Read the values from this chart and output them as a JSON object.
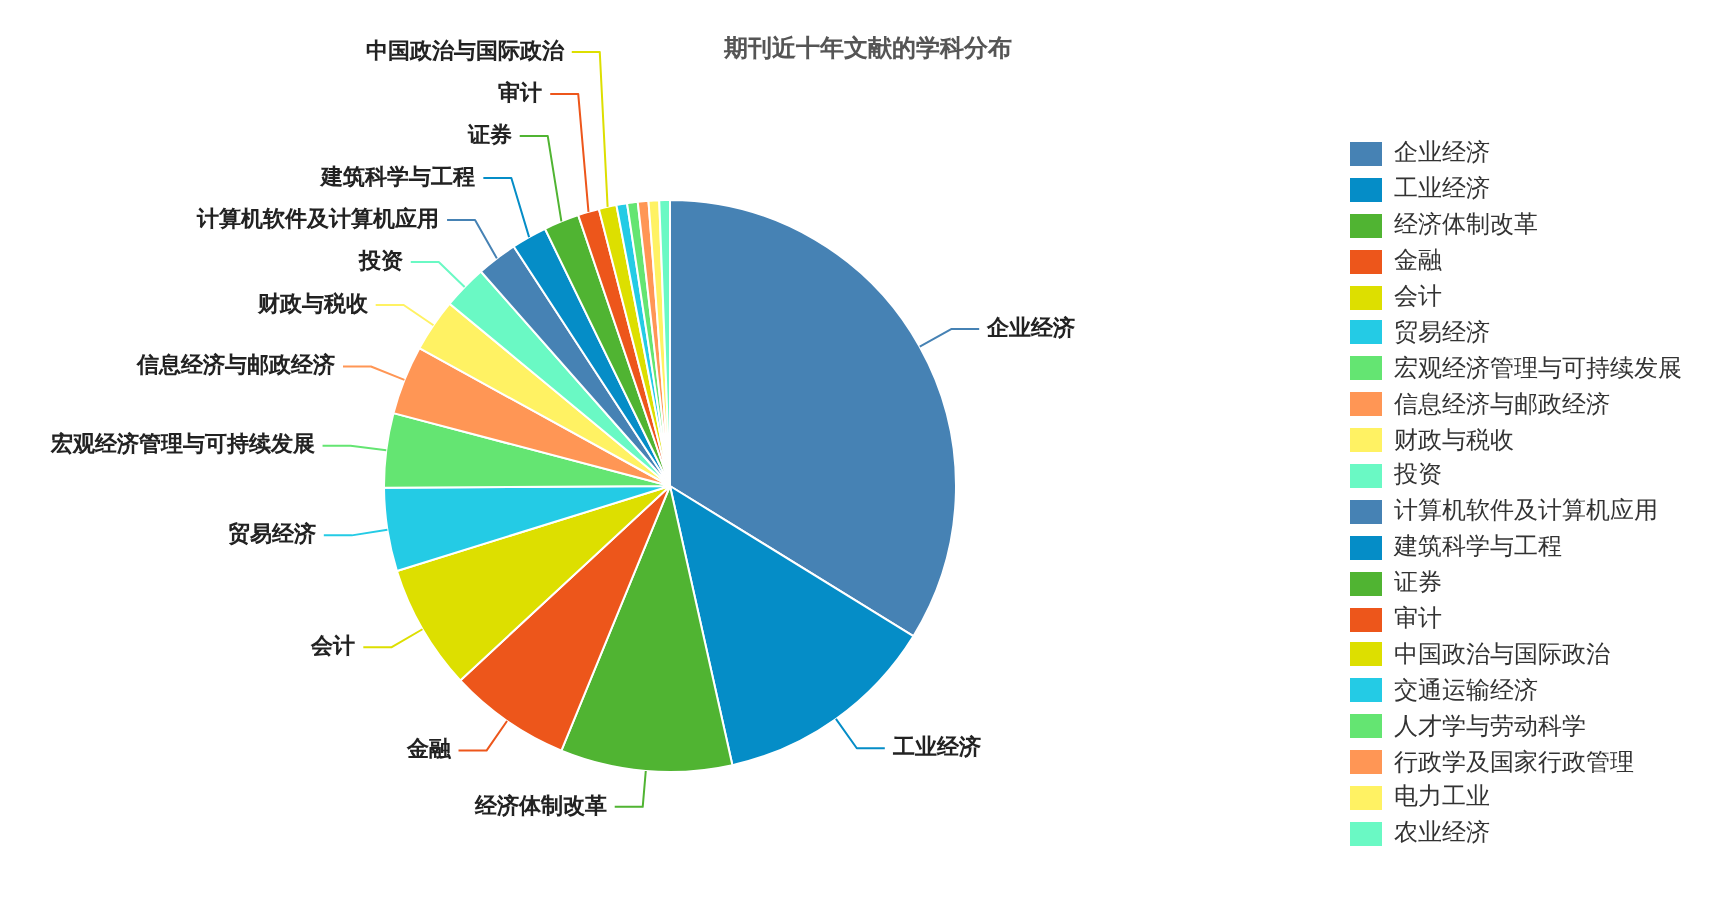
{
  "chart_data": {
    "type": "pie",
    "title": "期刊近十年文献的学科分布",
    "categories": [
      "企业经济",
      "工业经济",
      "经济体制改革",
      "金融",
      "会计",
      "贸易经济",
      "宏观经济管理与可持续发展",
      "信息经济与邮政经济",
      "财政与税收",
      "投资",
      "计算机软件及计算机应用",
      "建筑科学与工程",
      "证券",
      "审计",
      "中国政治与国际政治",
      "交通运输经济",
      "人才学与劳动科学",
      "行政学及国家行政管理",
      "电力工业",
      "农业经济"
    ],
    "values": [
      33.8,
      12.7,
      9.7,
      6.9,
      7.1,
      4.7,
      4.2,
      3.9,
      3.0,
      2.5,
      2.3,
      2.0,
      2.0,
      1.2,
      1.0,
      0.6,
      0.6,
      0.6,
      0.6,
      0.6
    ],
    "colors": [
      "#4682b4",
      "#058dc7",
      "#50b432",
      "#ed561b",
      "#dddf00",
      "#24cbe5",
      "#64e572",
      "#ff9655",
      "#fff263",
      "#6af9c4",
      "#4682b4",
      "#058dc7",
      "#50b432",
      "#ed561b",
      "#dddf00",
      "#24cbe5",
      "#64e572",
      "#ff9655",
      "#fff263",
      "#6af9c4"
    ],
    "legend": "right"
  }
}
